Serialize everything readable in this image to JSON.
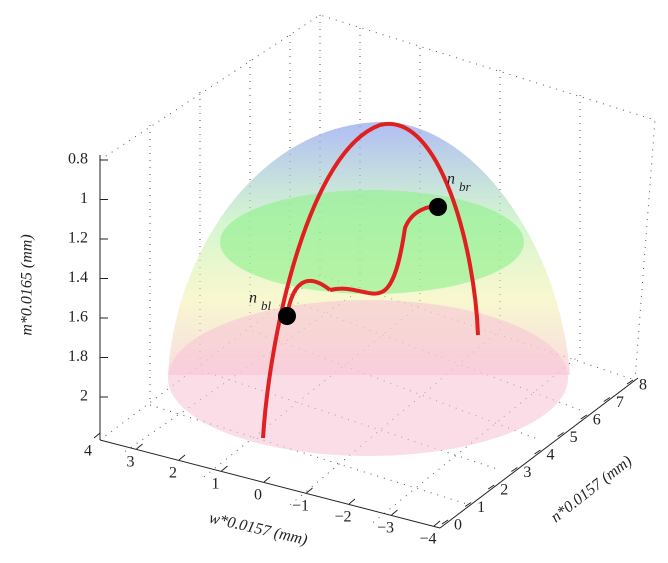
{
  "chart_data": {
    "type": "surface3d",
    "zlabel": "m*0.0165 (mm)",
    "xlabel": "w*0.0157 (mm)",
    "ylabel": "n*0.0157 (mm)",
    "zlim": [
      0.8,
      2.2
    ],
    "zticks": [
      0.8,
      1,
      1.2,
      1.4,
      1.6,
      1.8,
      2
    ],
    "z_reversed": true,
    "xlim": [
      4,
      -4
    ],
    "xticks": [
      4,
      3,
      2,
      1,
      0,
      {
        "value": -1,
        "label": "−1"
      },
      {
        "value": -2,
        "label": "−2"
      },
      {
        "value": -3,
        "label": "−3"
      },
      {
        "value": -4,
        "label": "−4"
      }
    ],
    "ylim": [
      0,
      8
    ],
    "yticks": [
      0,
      1,
      2,
      3,
      4,
      5,
      6,
      7,
      8
    ],
    "grid": true,
    "annotations": [
      {
        "label": "n",
        "subscript": "br"
      },
      {
        "label": "n",
        "subscript": "bl"
      }
    ]
  }
}
